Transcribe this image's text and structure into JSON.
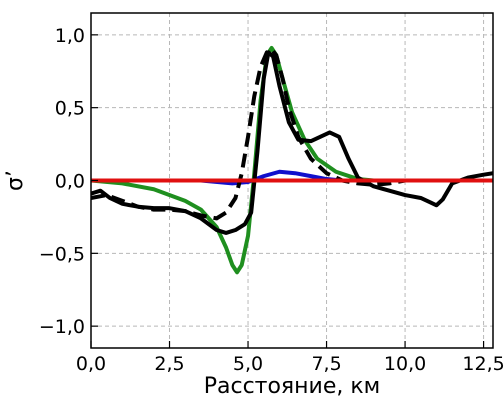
{
  "chart_data": {
    "type": "line",
    "title": "",
    "xlabel": "Расстояние, км",
    "ylabel": "σ’",
    "xlim": [
      0,
      12.8
    ],
    "ylim": [
      -1.15,
      1.15
    ],
    "grid": true,
    "legend": "none",
    "x_ticks": [
      0,
      2.5,
      5,
      7.5,
      10,
      12.5
    ],
    "x_tick_labels": [
      "0,0",
      "2,5",
      "5,0",
      "7,5",
      "10,0",
      "12,5"
    ],
    "y_ticks": [
      -1,
      -0.5,
      0,
      0.5,
      1
    ],
    "y_tick_labels": [
      "−1,0",
      "−0,5",
      "0,0",
      "0,5",
      "1,0"
    ],
    "series": [
      {
        "color": "#000000",
        "style": "dashed",
        "points": [
          [
            0,
            -0.12
          ],
          [
            0.5,
            -0.1
          ],
          [
            1.0,
            -0.14
          ],
          [
            1.5,
            -0.18
          ],
          [
            2.0,
            -0.2
          ],
          [
            2.5,
            -0.2
          ],
          [
            3.0,
            -0.21
          ],
          [
            3.5,
            -0.24
          ],
          [
            4.0,
            -0.26
          ],
          [
            4.3,
            -0.22
          ],
          [
            4.6,
            -0.12
          ],
          [
            4.8,
            0.05
          ],
          [
            5.0,
            0.3
          ],
          [
            5.2,
            0.58
          ],
          [
            5.4,
            0.78
          ],
          [
            5.6,
            0.88
          ],
          [
            5.75,
            0.9
          ],
          [
            5.9,
            0.86
          ],
          [
            6.1,
            0.7
          ],
          [
            6.3,
            0.5
          ],
          [
            6.6,
            0.3
          ],
          [
            7.0,
            0.15
          ],
          [
            7.5,
            0.05
          ],
          [
            8.0,
            0.0
          ],
          [
            8.5,
            -0.02
          ],
          [
            9.0,
            -0.03
          ],
          [
            9.5,
            -0.02
          ],
          [
            10.0,
            0.0
          ],
          [
            11.0,
            0.0
          ],
          [
            12.0,
            0.0
          ],
          [
            12.8,
            0.0
          ]
        ]
      },
      {
        "color": "#000000",
        "style": "solid",
        "points": [
          [
            0,
            -0.09
          ],
          [
            0.3,
            -0.07
          ],
          [
            0.6,
            -0.12
          ],
          [
            1.0,
            -0.16
          ],
          [
            1.5,
            -0.18
          ],
          [
            2.0,
            -0.19
          ],
          [
            2.5,
            -0.19
          ],
          [
            3.0,
            -0.21
          ],
          [
            3.5,
            -0.26
          ],
          [
            4.0,
            -0.34
          ],
          [
            4.3,
            -0.36
          ],
          [
            4.6,
            -0.34
          ],
          [
            4.9,
            -0.3
          ],
          [
            5.1,
            -0.22
          ],
          [
            5.3,
            0.2
          ],
          [
            5.5,
            0.7
          ],
          [
            5.65,
            0.88
          ],
          [
            5.8,
            0.85
          ],
          [
            6.0,
            0.65
          ],
          [
            6.3,
            0.4
          ],
          [
            6.6,
            0.28
          ],
          [
            7.0,
            0.27
          ],
          [
            7.3,
            0.3
          ],
          [
            7.6,
            0.33
          ],
          [
            7.9,
            0.3
          ],
          [
            8.2,
            0.15
          ],
          [
            8.5,
            0.02
          ],
          [
            9.0,
            -0.04
          ],
          [
            9.5,
            -0.07
          ],
          [
            10.0,
            -0.1
          ],
          [
            10.5,
            -0.12
          ],
          [
            10.8,
            -0.15
          ],
          [
            11.0,
            -0.17
          ],
          [
            11.2,
            -0.13
          ],
          [
            11.5,
            -0.02
          ],
          [
            12.0,
            0.02
          ],
          [
            12.5,
            0.04
          ],
          [
            12.8,
            0.05
          ]
        ]
      },
      {
        "color": "#1f8f1f",
        "style": "solid",
        "points": [
          [
            0,
            0.0
          ],
          [
            1.0,
            -0.02
          ],
          [
            2.0,
            -0.06
          ],
          [
            3.0,
            -0.14
          ],
          [
            3.5,
            -0.2
          ],
          [
            4.0,
            -0.32
          ],
          [
            4.3,
            -0.46
          ],
          [
            4.5,
            -0.58
          ],
          [
            4.65,
            -0.63
          ],
          [
            4.8,
            -0.58
          ],
          [
            5.0,
            -0.38
          ],
          [
            5.2,
            0.05
          ],
          [
            5.4,
            0.55
          ],
          [
            5.6,
            0.86
          ],
          [
            5.75,
            0.91
          ],
          [
            5.9,
            0.86
          ],
          [
            6.1,
            0.7
          ],
          [
            6.4,
            0.47
          ],
          [
            6.8,
            0.28
          ],
          [
            7.2,
            0.15
          ],
          [
            7.8,
            0.06
          ],
          [
            8.5,
            0.01
          ],
          [
            9.0,
            0.0
          ],
          [
            10.0,
            0.0
          ],
          [
            11.0,
            0.0
          ],
          [
            12.0,
            0.0
          ],
          [
            12.8,
            0.0
          ]
        ]
      },
      {
        "color": "#1010cc",
        "style": "solid",
        "points": [
          [
            0,
            0.0
          ],
          [
            3.5,
            0.0
          ],
          [
            4.5,
            -0.02
          ],
          [
            5.0,
            -0.01
          ],
          [
            5.5,
            0.03
          ],
          [
            6.0,
            0.06
          ],
          [
            6.5,
            0.05
          ],
          [
            7.0,
            0.03
          ],
          [
            7.5,
            0.01
          ],
          [
            8.0,
            0.0
          ],
          [
            12.8,
            0.0
          ]
        ]
      },
      {
        "color": "#e01010",
        "style": "solid",
        "points": [
          [
            0,
            0.0
          ],
          [
            12.8,
            0.0
          ]
        ]
      }
    ]
  }
}
